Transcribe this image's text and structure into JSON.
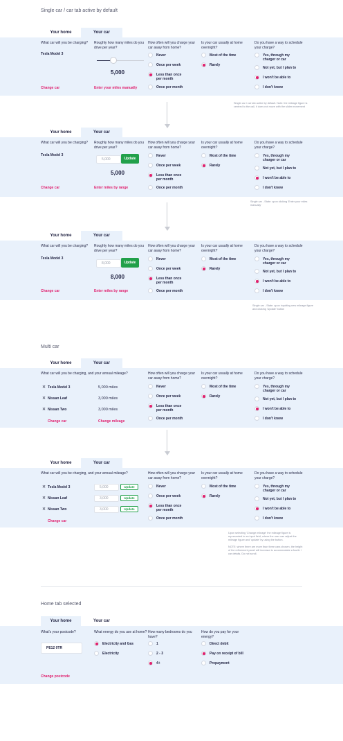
{
  "headings": {
    "single": "Single car / car tab active by default",
    "multi": "Multi car",
    "home": "Home tab selected"
  },
  "tabs": {
    "home": "Your home",
    "car": "Your car"
  },
  "questions": {
    "car": "What car will you be charging?",
    "miles": "Roughly how many miles do you drive per year?",
    "charge_away": "How often will you charge your car away from home?",
    "overnight": "Is your car usually at home overnight?",
    "schedule": "Do you have a way to schedule your charge?",
    "multi_car": "What car will you be charging, and your annual mileage?",
    "postcode": "What's your postcode?",
    "energy": "What energy do you use at home?",
    "bedrooms": "How many bedrooms do you have?",
    "pay": "How do you pay for your energy?"
  },
  "car_name": "Tesla Model 3",
  "options": {
    "charge_away": [
      "Never",
      "Once per week",
      "Less than once per month",
      "Once per month"
    ],
    "overnight": [
      "Most of the time",
      "Rarely"
    ],
    "schedule": [
      "Yes, through my charger or car",
      "Not yet, but I plan to",
      "I won't be able to",
      "I don't know"
    ],
    "energy": [
      "Electricity and Gas",
      "Electricity"
    ],
    "bedrooms": [
      "1",
      "2 - 3",
      "4+"
    ],
    "pay": [
      "Direct debit",
      "Pay on receipt of bill",
      "Prepayment"
    ]
  },
  "links": {
    "change_car": "Change car",
    "enter_manual": "Enter your miles manually",
    "enter_range": "Enter miles by range",
    "change_mileage": "Change mileage",
    "change_postcode": "Change postcode"
  },
  "values": {
    "slider_miles": "5,000",
    "panel2_input": "5,000",
    "panel2_big": "5,000",
    "panel3_input": "8,000",
    "panel3_big": "8,000",
    "update": "Update",
    "postcode": "PE12 0TR",
    "slider_position": 0.35
  },
  "multi_cars": [
    {
      "name": "Tesla Model 3",
      "miles": "5,000 miles",
      "input": "5,000"
    },
    {
      "name": "Nissan Leaf",
      "miles": "3,000 miles",
      "input": "3,000"
    },
    {
      "name": "Nissan Two",
      "miles": "3,000 miles",
      "input": "3,000"
    }
  ],
  "notes": {
    "n1": "Single car / car tab active by default. Note: the mileage figure is centred to the call, it does not move with the slider movement",
    "n2": "Single car - State: upon clicking 'Enter your miles manually'",
    "n3": "Single car - State: upon inputting new mileage figure and clicking 'Update' button",
    "n4a": "Upon selecting 'Change mileage' the mileage figure is represented in an input field, where the user can adjust the mileage figure and 'update' by using the button.",
    "n4b": "NOTE: where there are more than three cars chosen, the height of the refinement panel will increase to accommodate a fourth + car details. Do not scroll."
  },
  "colors": {
    "accent": "#e0206e",
    "green": "#21a04a",
    "panel": "#e9f1fb"
  }
}
